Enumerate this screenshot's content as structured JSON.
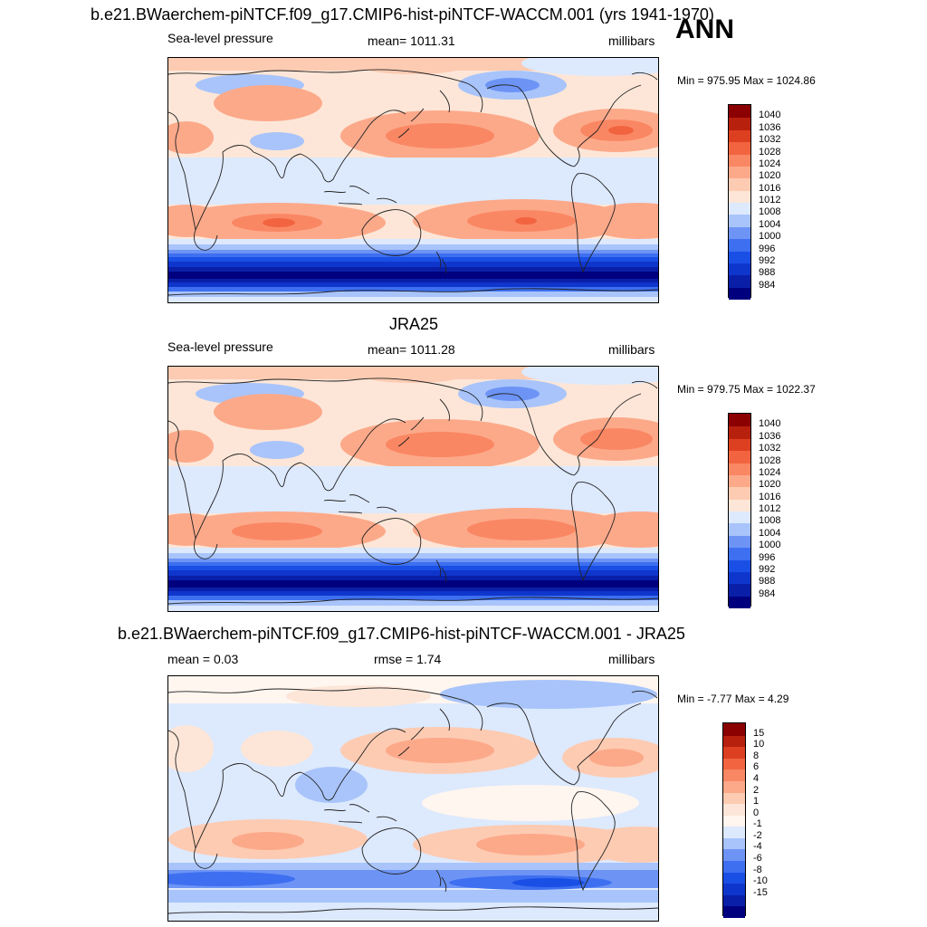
{
  "season": "ANN",
  "colors": {
    "slp_scale": [
      "#00007f",
      "#0a1fa8",
      "#0f36cc",
      "#1a4fe6",
      "#3d6ff0",
      "#6d94f5",
      "#a8c4fb",
      "#dde9fd",
      "#fde6d7",
      "#fdcbb2",
      "#fca98a",
      "#fa8763",
      "#f26440",
      "#dd4020",
      "#b8200e",
      "#8b0000"
    ],
    "diff_scale": [
      "#00007f",
      "#0a1fa8",
      "#0f36cc",
      "#1a4fe6",
      "#3d6ff0",
      "#6d94f5",
      "#a8c4fb",
      "#dde9fd",
      "#fff6ef",
      "#fde6d7",
      "#fdcbb2",
      "#fca98a",
      "#fa8763",
      "#f26440",
      "#dd4020",
      "#b8200e",
      "#8b0000"
    ]
  },
  "panels": [
    {
      "id": "model",
      "title": "b.e21.BWaerchem-piNTCF.f09_g17.CMIP6-hist-piNTCF-WACCM.001 (yrs 1941-1970)",
      "left_label": "Sea-level pressure",
      "center_label": "mean= 1011.31",
      "right_label": "millibars",
      "minmax": "Min = 975.95 Max = 1024.86",
      "cbar_labels": [
        "1040",
        "1036",
        "1032",
        "1028",
        "1024",
        "1020",
        "1016",
        "1012",
        "1008",
        "1004",
        "1000",
        "996",
        "992",
        "988",
        "984"
      ]
    },
    {
      "id": "obs",
      "title": "JRA25",
      "left_label": "Sea-level pressure",
      "center_label": "mean= 1011.28",
      "right_label": "millibars",
      "minmax": "Min = 979.75 Max = 1022.37",
      "cbar_labels": [
        "1040",
        "1036",
        "1032",
        "1028",
        "1024",
        "1020",
        "1016",
        "1012",
        "1008",
        "1004",
        "1000",
        "996",
        "992",
        "988",
        "984"
      ]
    },
    {
      "id": "diff",
      "title": "b.e21.BWaerchem-piNTCF.f09_g17.CMIP6-hist-piNTCF-WACCM.001 - JRA25",
      "left_label": "mean =   0.03",
      "center_label": "rmse =   1.74",
      "right_label": "millibars",
      "minmax": "Min =  -7.77 Max =   4.29",
      "cbar_labels": [
        "15",
        "10",
        "8",
        "6",
        "4",
        "2",
        "1",
        "0",
        "-1",
        "-2",
        "-4",
        "-6",
        "-8",
        "-10",
        "-15"
      ]
    }
  ]
}
